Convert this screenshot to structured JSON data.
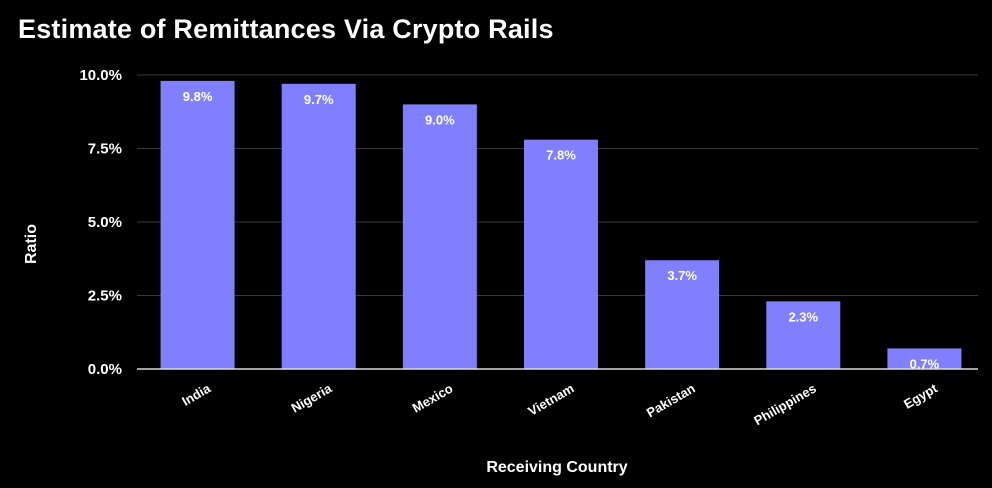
{
  "chart_data": {
    "type": "bar",
    "title": "Estimate of Remittances Via Crypto Rails",
    "xlabel": "Receiving Country",
    "ylabel": "Ratio",
    "categories": [
      "India",
      "Nigeria",
      "Mexico",
      "Vietnam",
      "Pakistan",
      "Philippines",
      "Egypt"
    ],
    "values": [
      9.8,
      9.7,
      9.0,
      7.8,
      3.7,
      2.3,
      0.7
    ],
    "value_labels": [
      "9.8%",
      "9.7%",
      "9.0%",
      "7.8%",
      "3.7%",
      "2.3%",
      "0.7%"
    ],
    "ylim": [
      0,
      10
    ],
    "yticks": [
      0,
      2.5,
      5,
      7.5,
      10
    ],
    "ytick_labels": [
      "0.0%",
      "2.5%",
      "5.0%",
      "7.5%",
      "10.0%"
    ],
    "grid": true,
    "bar_color": "#8080ff",
    "gridline_color": "#3a3a3a",
    "baseline_color": "#d9d9d9",
    "background_color": "#000000",
    "text_color": "#ffffff"
  }
}
